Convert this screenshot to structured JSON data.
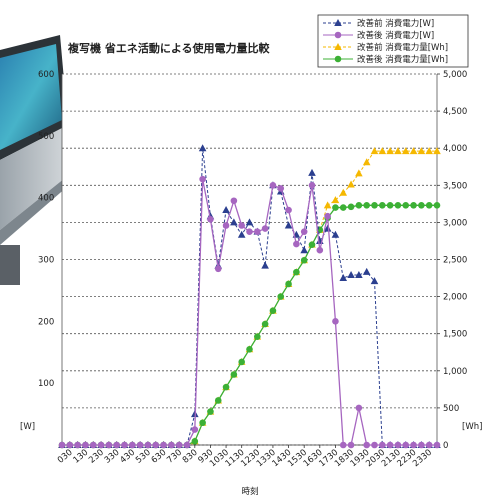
{
  "chart_data": {
    "type": "line",
    "title": "複写機 省エネ活動による使用電力量比較",
    "xlabel": "時刻",
    "ylabel_left": "[W]",
    "ylabel_right": "[Wh]",
    "ylim_left": [
      0,
      600
    ],
    "ylim_right": [
      0,
      5000
    ],
    "grid": true,
    "legend_position": "top-right",
    "yticks_left": [
      "0",
      "100",
      "200",
      "300",
      "400",
      "500",
      "600"
    ],
    "yticks_right": [
      "0",
      "500",
      "1,000",
      "1,500",
      "2,000",
      "2,500",
      "3,000",
      "3,500",
      "4,000",
      "4,500",
      "5,000"
    ],
    "x_tick_labels": [
      "030",
      "130",
      "230",
      "330",
      "430",
      "530",
      "630",
      "730",
      "830",
      "930",
      "1030",
      "1130",
      "1230",
      "1330",
      "1430",
      "1530",
      "1630",
      "1730",
      "1830",
      "1930",
      "2030",
      "2130",
      "2230",
      "2330"
    ],
    "x": [
      "000",
      "030",
      "100",
      "130",
      "200",
      "230",
      "300",
      "330",
      "400",
      "430",
      "500",
      "530",
      "600",
      "630",
      "700",
      "730",
      "800",
      "830",
      "900",
      "930",
      "1000",
      "1030",
      "1100",
      "1130",
      "1200",
      "1230",
      "1300",
      "1330",
      "1400",
      "1430",
      "1500",
      "1530",
      "1600",
      "1630",
      "1700",
      "1730",
      "1800",
      "1830",
      "1900",
      "1930",
      "2000",
      "2030",
      "2100",
      "2130",
      "2200",
      "2230",
      "2300",
      "2330",
      "2400"
    ],
    "series": [
      {
        "name": "改善前 消費電力[W]",
        "axis": "left",
        "color": "#2b3f8f",
        "marker": "triangle",
        "line": "dashed",
        "values": [
          0,
          0,
          0,
          0,
          0,
          0,
          0,
          0,
          0,
          0,
          0,
          0,
          0,
          0,
          0,
          0,
          0,
          50,
          480,
          370,
          290,
          380,
          360,
          340,
          360,
          345,
          290,
          420,
          410,
          355,
          340,
          315,
          440,
          330,
          350,
          340,
          270,
          275,
          275,
          280,
          265,
          0,
          0,
          0,
          0,
          0,
          0,
          0,
          0
        ]
      },
      {
        "name": "改善後 消費電力[W]",
        "axis": "left",
        "color": "#a666c0",
        "marker": "circle",
        "line": "solid",
        "values": [
          0,
          0,
          0,
          0,
          0,
          0,
          0,
          0,
          0,
          0,
          0,
          0,
          0,
          0,
          0,
          0,
          0,
          25,
          430,
          365,
          285,
          355,
          395,
          355,
          345,
          345,
          350,
          420,
          415,
          380,
          325,
          345,
          420,
          315,
          370,
          200,
          0,
          0,
          60,
          0,
          0,
          0,
          0,
          0,
          0,
          0,
          0,
          0,
          0
        ]
      },
      {
        "name": "改善前 消費電力量[Wh]",
        "axis": "right",
        "color": "#f5b800",
        "marker": "triangle",
        "line": "dashed",
        "values": [
          0,
          0,
          0,
          0,
          0,
          0,
          0,
          0,
          0,
          0,
          0,
          0,
          0,
          0,
          0,
          0,
          0,
          50,
          300,
          450,
          600,
          780,
          950,
          1120,
          1290,
          1460,
          1630,
          1810,
          2000,
          2170,
          2330,
          2490,
          2700,
          2900,
          3230,
          3300,
          3400,
          3510,
          3660,
          3810,
          3960,
          3960,
          3960,
          3960,
          3960,
          3960,
          3960,
          3960,
          3960
        ]
      },
      {
        "name": "改善後 消費電力量[Wh]",
        "axis": "right",
        "color": "#3cb035",
        "marker": "circle",
        "line": "solid",
        "values": [
          0,
          0,
          0,
          0,
          0,
          0,
          0,
          0,
          0,
          0,
          0,
          0,
          0,
          0,
          0,
          0,
          0,
          50,
          300,
          450,
          600,
          780,
          950,
          1120,
          1290,
          1460,
          1630,
          1810,
          2000,
          2170,
          2330,
          2490,
          2700,
          2900,
          3060,
          3200,
          3200,
          3210,
          3230,
          3230,
          3230,
          3230,
          3230,
          3230,
          3230,
          3230,
          3230,
          3230,
          3230
        ]
      }
    ]
  }
}
